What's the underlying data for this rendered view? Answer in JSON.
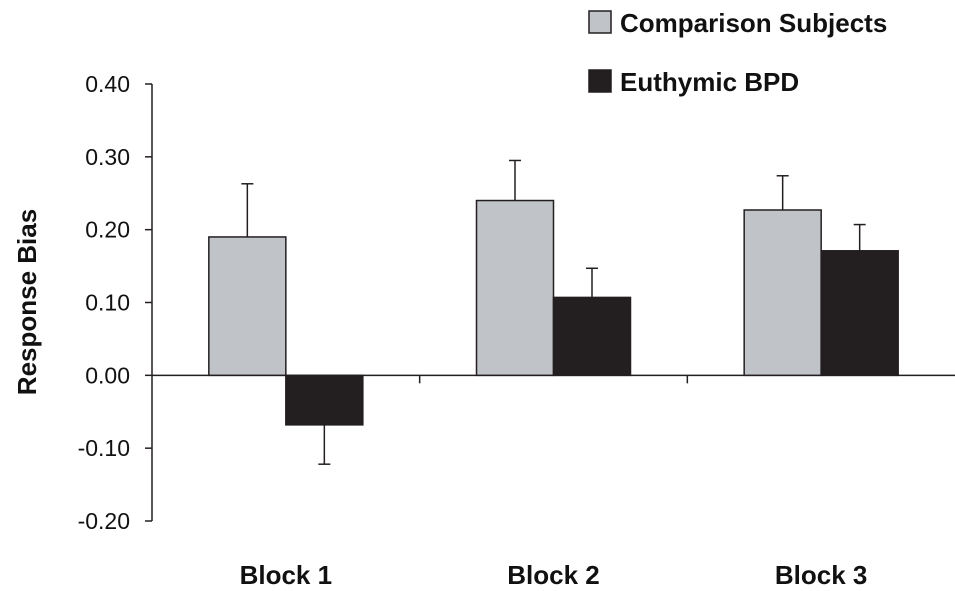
{
  "chart_data": {
    "type": "bar",
    "categories": [
      "Block 1",
      "Block 2",
      "Block 3"
    ],
    "series": [
      {
        "name": "Comparison Subjects",
        "color": "#c0c3c8",
        "values": [
          0.19,
          0.24,
          0.227
        ],
        "errors": [
          0.073,
          0.055,
          0.047
        ]
      },
      {
        "name": "Euthymic BPD",
        "color": "#231f20",
        "values": [
          -0.068,
          0.107,
          0.171
        ],
        "errors": [
          0.054,
          0.04,
          0.036
        ]
      }
    ],
    "ylabel": "Response Bias",
    "ylim": [
      -0.2,
      0.4
    ],
    "yticks": [
      "0.40",
      "0.30",
      "0.20",
      "0.10",
      "0.00",
      "-0.10",
      "-0.20"
    ],
    "legend_position": "top-right",
    "grid": false
  }
}
